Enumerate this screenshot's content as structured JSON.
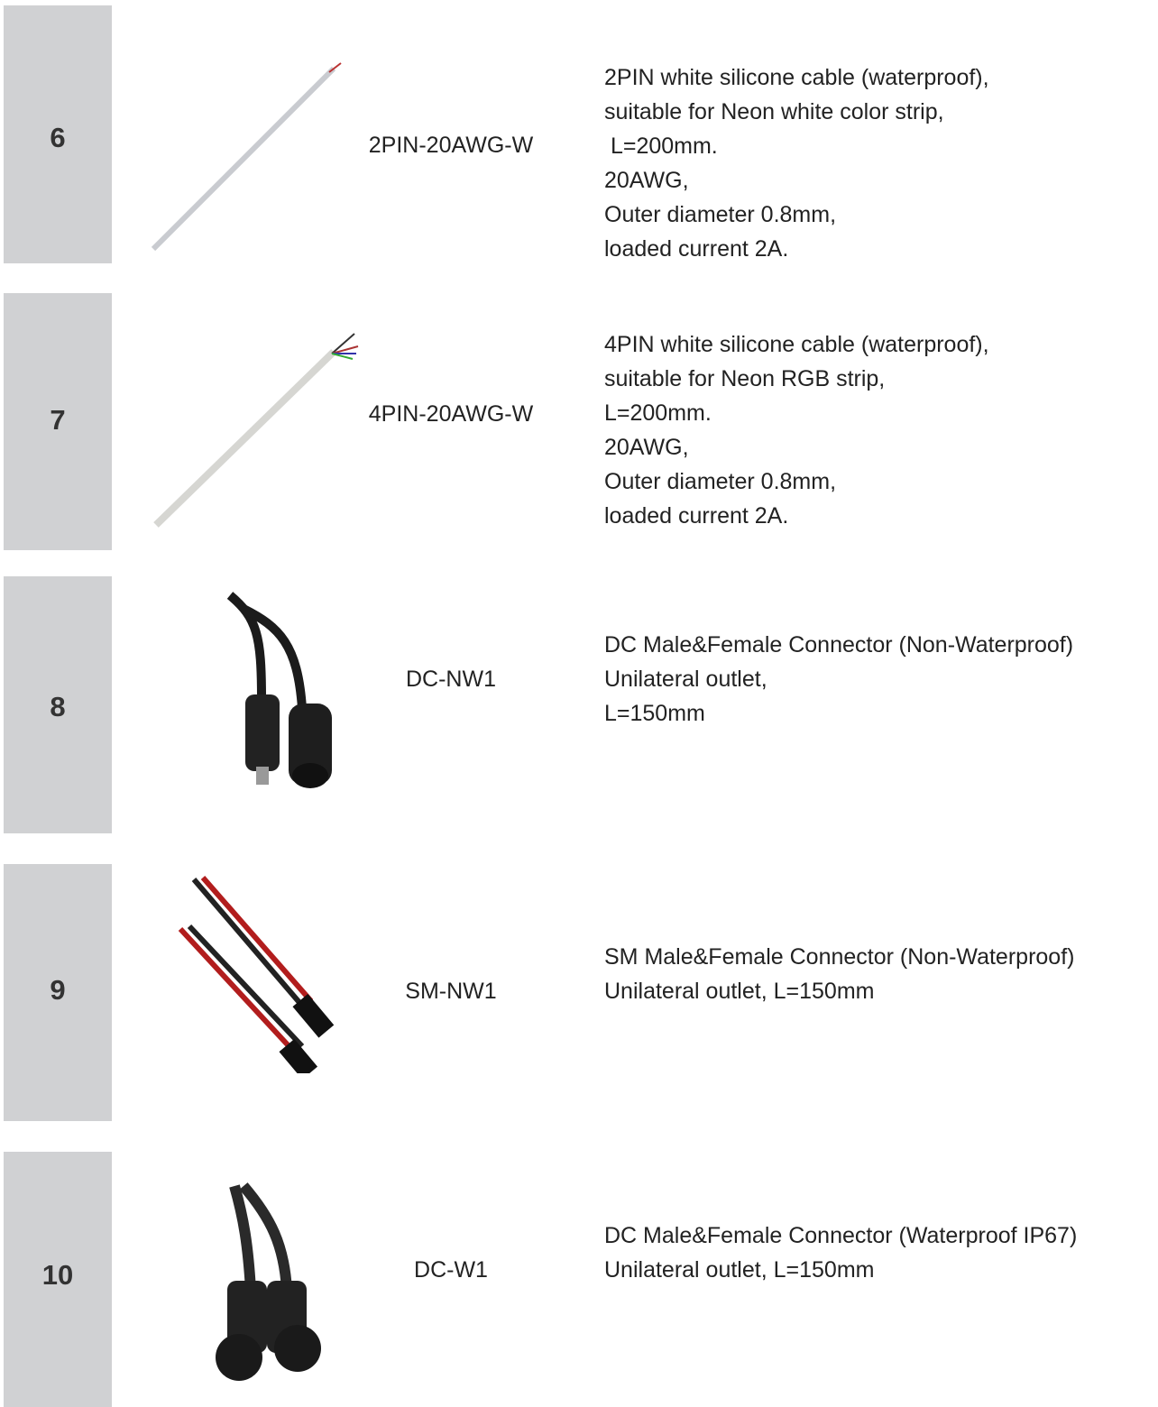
{
  "rows": [
    {
      "number": "6",
      "code": "2PIN-20AWG-W",
      "description": [
        "2PIN white silicone cable (waterproof),",
        "suitable for Neon white color strip,",
        " L=200mm.",
        "20AWG,",
        "Outer diameter 0.8mm,",
        "loaded current 2A."
      ]
    },
    {
      "number": "7",
      "code": "4PIN-20AWG-W",
      "description": [
        "4PIN white silicone cable (waterproof),",
        "suitable for Neon RGB strip,",
        "L=200mm.",
        "20AWG,",
        "Outer diameter 0.8mm,",
        "loaded current 2A."
      ]
    },
    {
      "number": "8",
      "code": "DC-NW1",
      "description": [
        "DC Male&Female Connector (Non-Waterproof)",
        "Unilateral outlet,",
        "L=150mm"
      ]
    },
    {
      "number": "9",
      "code": "SM-NW1",
      "description": [
        "SM Male&Female Connector (Non-Waterproof)",
        "Unilateral outlet, L=150mm"
      ]
    },
    {
      "number": "10",
      "code": "DC-W1",
      "description": [
        "DC Male&Female Connector (Waterproof IP67)",
        "Unilateral outlet, L=150mm"
      ]
    }
  ]
}
